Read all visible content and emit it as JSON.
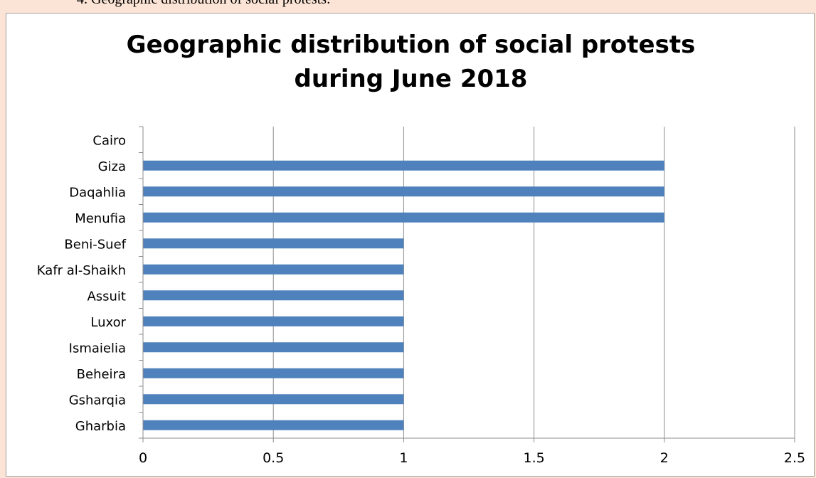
{
  "caption": "4. Geographic distribution of social protests:",
  "chart_data": {
    "type": "bar",
    "orientation": "horizontal",
    "title_lines": [
      "Geographic distribution of social protests",
      "during June 2018"
    ],
    "categories": [
      "Cairo",
      "Giza",
      "Daqahlia",
      "Menufia",
      "Beni-Suef",
      "Kafr al-Shaikh",
      "Assuit",
      "Luxor",
      "Ismaielia",
      "Beheira",
      "Gsharqia",
      "Gharbia"
    ],
    "values": [
      0,
      2,
      2,
      2,
      1,
      1,
      1,
      1,
      1,
      1,
      1,
      1
    ],
    "xlim": [
      0,
      2.5
    ],
    "xticks": [
      "0",
      "0.5",
      "1",
      "1.5",
      "2",
      "2.5"
    ],
    "grid": true,
    "bar_color": "#4f81bd"
  }
}
